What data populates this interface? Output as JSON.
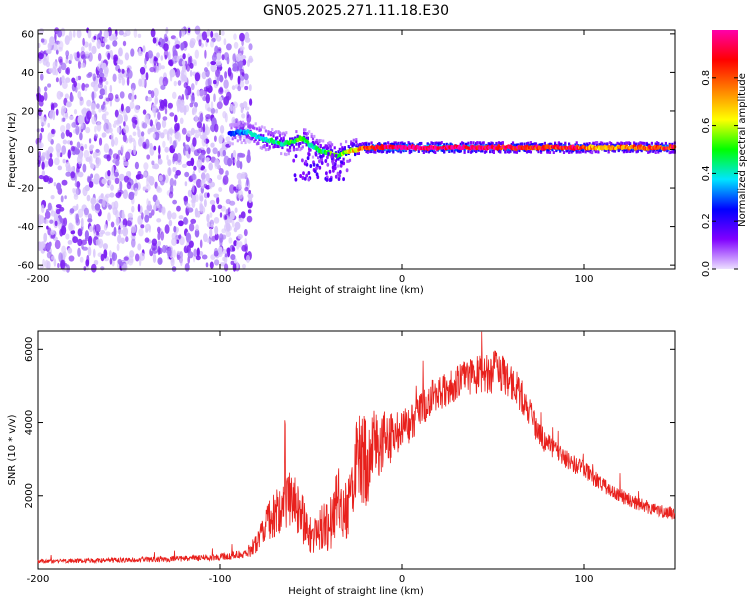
{
  "title": "GN05.2025.271.11.18.E30",
  "chart_data": [
    {
      "type": "heatmap",
      "panel": "spectrogram",
      "xlabel": "Height of straight line (km)",
      "ylabel": "Frequency (Hz)",
      "xlim": [
        -200,
        150
      ],
      "ylim": [
        -62,
        62
      ],
      "xticks": [
        -200,
        -100,
        0,
        100
      ],
      "yticks": [
        -60,
        -40,
        -20,
        0,
        20,
        40,
        60
      ],
      "colorbar": {
        "label": "Normalized spectral amplitude",
        "range": [
          0,
          1
        ],
        "ticks": [
          0.0,
          0.2,
          0.4,
          0.6,
          0.8
        ],
        "colors": [
          "#ece0ff",
          "#8000ff",
          "#0000ff",
          "#00e5ff",
          "#00ff00",
          "#ffff00",
          "#ff8000",
          "#ff0000",
          "#ff00aa"
        ]
      },
      "noise_region": {
        "x_range": [
          -200,
          -83
        ],
        "y_range": [
          -62,
          62
        ],
        "amplitude": [
          0.0,
          0.15
        ]
      },
      "ridge": [
        {
          "x": -95,
          "y": 8,
          "amp": 0.25
        },
        {
          "x": -90,
          "y": 9,
          "amp": 0.3
        },
        {
          "x": -85,
          "y": 9,
          "amp": 0.35
        },
        {
          "x": -80,
          "y": 7,
          "amp": 0.4
        },
        {
          "x": -75,
          "y": 5,
          "amp": 0.4
        },
        {
          "x": -70,
          "y": 4,
          "amp": 0.45
        },
        {
          "x": -65,
          "y": 3,
          "amp": 0.45
        },
        {
          "x": -60,
          "y": 4,
          "amp": 0.5
        },
        {
          "x": -55,
          "y": 6,
          "amp": 0.5
        },
        {
          "x": -50,
          "y": 2,
          "amp": 0.45
        },
        {
          "x": -45,
          "y": -1,
          "amp": 0.45
        },
        {
          "x": -40,
          "y": -2,
          "amp": 0.5
        },
        {
          "x": -35,
          "y": -3,
          "amp": 0.55
        },
        {
          "x": -30,
          "y": -1,
          "amp": 0.6
        },
        {
          "x": -25,
          "y": 0,
          "amp": 0.7
        },
        {
          "x": -20,
          "y": 1,
          "amp": 0.85
        },
        {
          "x": -10,
          "y": 1,
          "amp": 0.95
        },
        {
          "x": 0,
          "y": 1,
          "amp": 1.0
        },
        {
          "x": 20,
          "y": 1,
          "amp": 1.0
        },
        {
          "x": 40,
          "y": 1,
          "amp": 0.95
        },
        {
          "x": 60,
          "y": 1,
          "amp": 0.9
        },
        {
          "x": 80,
          "y": 1,
          "amp": 0.85
        },
        {
          "x": 95,
          "y": 1,
          "amp": 0.9
        },
        {
          "x": 100,
          "y": 1,
          "amp": 0.75
        },
        {
          "x": 110,
          "y": 1,
          "amp": 0.7
        },
        {
          "x": 130,
          "y": 1,
          "amp": 0.8
        },
        {
          "x": 150,
          "y": 1,
          "amp": 0.85
        }
      ]
    },
    {
      "type": "line",
      "panel": "snr",
      "xlabel": "Height of straight line (km)",
      "ylabel": "SNR (10 * v/v)",
      "xlim": [
        -200,
        150
      ],
      "ylim": [
        0,
        6500
      ],
      "xticks": [
        -200,
        -100,
        0,
        100
      ],
      "yticks": [
        2000,
        4000,
        6000
      ],
      "series": [
        {
          "name": "SNR",
          "color": "#e8201c",
          "x": [
            -200,
            -180,
            -160,
            -140,
            -120,
            -100,
            -90,
            -85,
            -80,
            -75,
            -70,
            -65,
            -60,
            -55,
            -50,
            -45,
            -40,
            -35,
            -30,
            -25,
            -20,
            -18,
            -15,
            -10,
            -5,
            0,
            5,
            10,
            15,
            20,
            25,
            30,
            35,
            40,
            45,
            50,
            55,
            60,
            65,
            70,
            75,
            80,
            90,
            100,
            110,
            120,
            130,
            140,
            150
          ],
          "y": [
            200,
            220,
            240,
            260,
            280,
            320,
            380,
            450,
            700,
            1300,
            1500,
            1700,
            2000,
            1400,
            900,
            1100,
            1200,
            1900,
            1500,
            3000,
            3100,
            2900,
            3400,
            3600,
            3500,
            3800,
            4000,
            4300,
            4600,
            4800,
            4900,
            5100,
            5200,
            5300,
            5350,
            5400,
            5350,
            5100,
            4800,
            4300,
            3700,
            3400,
            3000,
            2700,
            2300,
            2000,
            1800,
            1600,
            1500
          ],
          "noise_amplitude": [
            60,
            60,
            60,
            70,
            80,
            100,
            120,
            150,
            300,
            500,
            700,
            700,
            800,
            700,
            500,
            600,
            800,
            900,
            800,
            1100,
            1400,
            1200,
            1000,
            900,
            700,
            600,
            500,
            500,
            500,
            500,
            500,
            500,
            500,
            500,
            600,
            600,
            500,
            500,
            500,
            400,
            350,
            300,
            250,
            250,
            200,
            200,
            200,
            180,
            180
          ]
        }
      ]
    }
  ]
}
